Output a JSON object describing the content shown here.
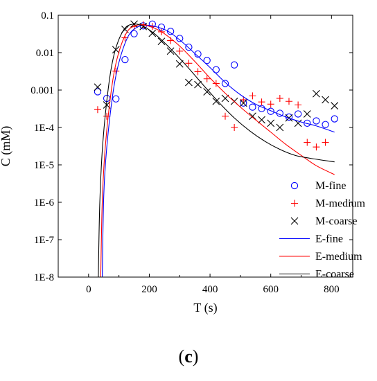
{
  "caption": {
    "open": "(",
    "letter": "c",
    "close": ")"
  },
  "chart_data": {
    "type": "scatter",
    "xlabel": "T (s)",
    "ylabel": "C (mM)",
    "xlim": [
      -100,
      870
    ],
    "ylim": [
      1e-08,
      0.1
    ],
    "ylog": true,
    "grid": false,
    "legend_position": "bottom-right",
    "x_ticks": [
      0,
      200,
      400,
      600,
      800
    ],
    "x_tick_labels": [
      "0",
      "200",
      "400",
      "600",
      "800"
    ],
    "y_ticks": [
      1e-08,
      1e-07,
      1e-06,
      1e-05,
      0.0001,
      0.001,
      0.01,
      0.1
    ],
    "y_tick_labels": [
      "1E-8",
      "1E-7",
      "1E-6",
      "1E-5",
      "1E-4",
      "0.001",
      "0.01",
      "0.1"
    ],
    "series": [
      {
        "name": "M-fine",
        "kind": "marker",
        "marker": "circle",
        "color": "#0000ff",
        "x": [
          30,
          60,
          90,
          120,
          150,
          180,
          210,
          240,
          270,
          300,
          330,
          360,
          390,
          420,
          450,
          480,
          510,
          540,
          570,
          600,
          630,
          660,
          690,
          720,
          750,
          780,
          810
        ],
        "y": [
          0.0009,
          0.0006,
          0.00058,
          0.0065,
          0.032,
          0.052,
          0.058,
          0.048,
          0.037,
          0.024,
          0.014,
          0.0092,
          0.0062,
          0.0035,
          0.0015,
          0.0047,
          0.00045,
          0.00035,
          0.00032,
          0.00027,
          0.00024,
          0.00019,
          0.00023,
          0.00013,
          0.00015,
          0.00012,
          0.00017
        ]
      },
      {
        "name": "M-medium",
        "kind": "marker",
        "marker": "plus",
        "color": "#ff0000",
        "x": [
          30,
          60,
          90,
          120,
          150,
          180,
          210,
          240,
          270,
          300,
          330,
          360,
          390,
          420,
          450,
          480,
          510,
          540,
          570,
          600,
          630,
          660,
          690,
          720,
          750,
          780
        ],
        "y": [
          0.0003,
          0.0002,
          0.0032,
          0.025,
          0.05,
          0.056,
          0.05,
          0.036,
          0.021,
          0.011,
          0.0052,
          0.0031,
          0.002,
          0.0015,
          0.0002,
          0.0001,
          0.00055,
          0.0007,
          0.00048,
          0.00042,
          0.0006,
          0.0005,
          0.0004,
          4e-05,
          3e-05,
          4e-05
        ]
      },
      {
        "name": "M-coarse",
        "kind": "marker",
        "marker": "cross",
        "color": "#000000",
        "x": [
          30,
          60,
          90,
          120,
          150,
          180,
          210,
          240,
          270,
          300,
          330,
          360,
          390,
          420,
          450,
          480,
          510,
          540,
          570,
          600,
          630,
          660,
          690,
          720,
          750,
          780,
          810
        ],
        "y": [
          0.0012,
          0.0004,
          0.012,
          0.042,
          0.058,
          0.05,
          0.033,
          0.02,
          0.011,
          0.005,
          0.0016,
          0.0014,
          0.0009,
          0.0005,
          0.0006,
          0.0005,
          0.00045,
          0.0002,
          0.00016,
          0.00013,
          0.0001,
          0.00018,
          0.00013,
          0.00023,
          0.0008,
          0.00055,
          0.00038
        ]
      },
      {
        "name": "E-fine",
        "kind": "line",
        "color": "#0000ff",
        "x": [
          45,
          50,
          60,
          80,
          100,
          130,
          160,
          190,
          220,
          260,
          300,
          350,
          400,
          450,
          500,
          550,
          600,
          650,
          700,
          750,
          810
        ],
        "y": [
          1e-08,
          1.5e-06,
          3e-05,
          0.0008,
          0.0055,
          0.027,
          0.048,
          0.054,
          0.05,
          0.038,
          0.022,
          0.0095,
          0.004,
          0.0016,
          0.00075,
          0.00042,
          0.00028,
          0.00019,
          0.00014,
          0.00011,
          7.5e-05
        ]
      },
      {
        "name": "E-medium",
        "kind": "line",
        "color": "#ff0000",
        "x": [
          40,
          45,
          55,
          75,
          95,
          125,
          155,
          185,
          215,
          250,
          300,
          350,
          400,
          450,
          500,
          550,
          600,
          650,
          700,
          750,
          810
        ],
        "y": [
          1e-08,
          1e-06,
          3e-05,
          0.001,
          0.0075,
          0.034,
          0.053,
          0.054,
          0.046,
          0.032,
          0.015,
          0.0058,
          0.0021,
          0.00082,
          0.00035,
          0.00016,
          7.5e-05,
          3.5e-05,
          1.8e-05,
          9.5e-06,
          5.5e-06
        ]
      },
      {
        "name": "E-coarse",
        "kind": "line",
        "color": "#000000",
        "x": [
          32,
          37,
          47,
          67,
          87,
          117,
          147,
          177,
          207,
          240,
          280,
          330,
          380,
          430,
          480,
          530,
          580,
          630,
          680,
          730,
          810
        ],
        "y": [
          1e-08,
          1e-06,
          4e-05,
          0.0015,
          0.011,
          0.042,
          0.058,
          0.052,
          0.037,
          0.022,
          0.0105,
          0.0038,
          0.0013,
          0.00046,
          0.00018,
          8.2e-05,
          4.3e-05,
          2.6e-05,
          1.8e-05,
          1.5e-05,
          1.2e-05
        ]
      }
    ]
  }
}
